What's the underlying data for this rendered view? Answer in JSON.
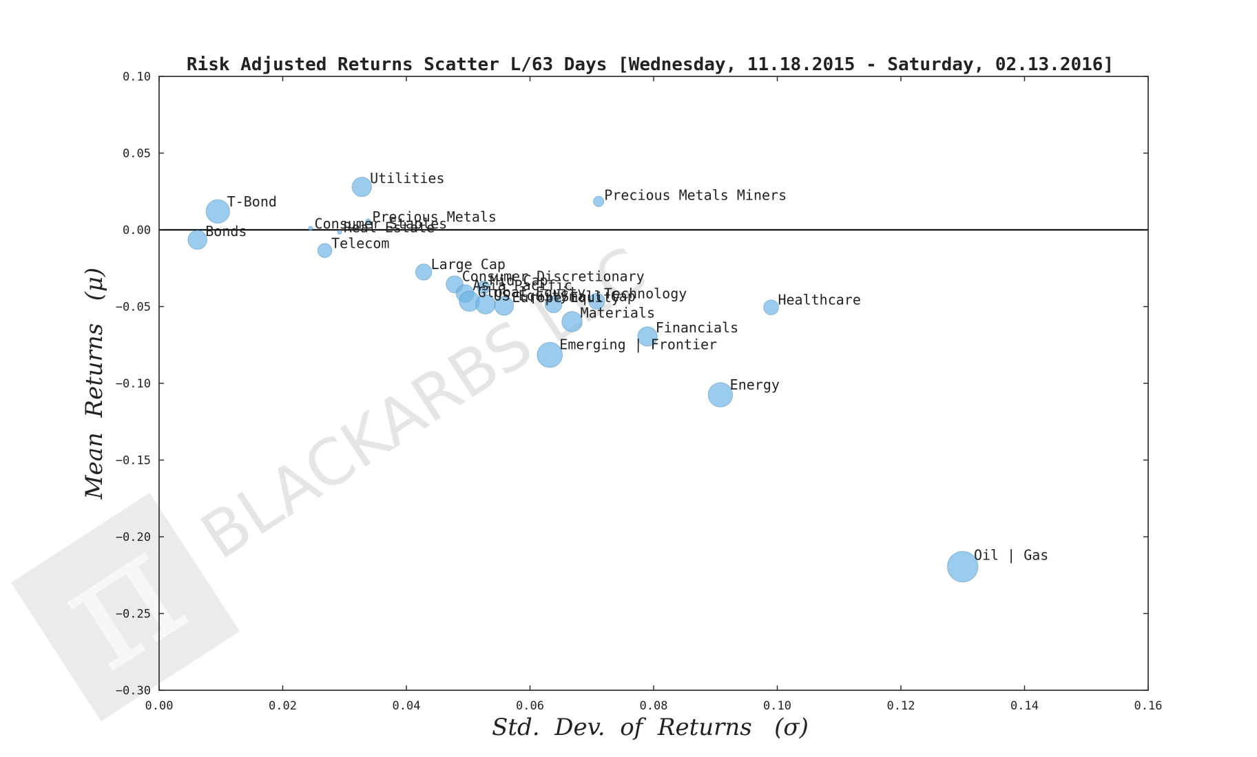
{
  "chart_data": {
    "type": "scatter",
    "title": "Risk Adjusted Returns Scatter L/63 Days [Wednesday, 11.18.2015 - Saturday, 02.13.2016]",
    "xlabel": "Std.  Dev.  of  Returns   (σ)",
    "ylabel": "Mean  Returns   (μ)",
    "xlim": [
      0.0,
      0.16
    ],
    "ylim": [
      -0.3,
      0.1
    ],
    "xticks": [
      "0.00",
      "0.02",
      "0.04",
      "0.06",
      "0.08",
      "0.10",
      "0.12",
      "0.14",
      "0.16"
    ],
    "yticks": [
      "0.10",
      "0.05",
      "0.00",
      "−0.05",
      "−0.10",
      "−0.15",
      "−0.20",
      "−0.25",
      "−0.30"
    ],
    "grid": false,
    "zero_line": true,
    "marker_color": "#6cb4e4",
    "points": [
      {
        "label": "Bonds",
        "x": 0.0062,
        "y": -0.0065,
        "size": 0.46
      },
      {
        "label": "T-Bond",
        "x": 0.0095,
        "y": 0.012,
        "size": 0.57
      },
      {
        "label": "Consumer Staples",
        "x": 0.0245,
        "y": 0.001,
        "size": 0.07
      },
      {
        "label": "Real Estate",
        "x": 0.0292,
        "y": -0.0015,
        "size": 0.07
      },
      {
        "label": "Precious Metals",
        "x": 0.0338,
        "y": 0.0055,
        "size": 0.12
      },
      {
        "label": "Telecom",
        "x": 0.0268,
        "y": -0.0135,
        "size": 0.34
      },
      {
        "label": "Utilities",
        "x": 0.0328,
        "y": 0.028,
        "size": 0.47
      },
      {
        "label": "Large Cap",
        "x": 0.0428,
        "y": -0.0275,
        "size": 0.39
      },
      {
        "label": "Consumer Discretionary",
        "x": 0.0478,
        "y": -0.0355,
        "size": 0.41
      },
      {
        "label": "Asia Pacific",
        "x": 0.0495,
        "y": -0.0415,
        "size": 0.43
      },
      {
        "label": "Global Equity",
        "x": 0.0502,
        "y": -0.0465,
        "size": 0.49
      },
      {
        "label": "Mid Cap",
        "x": 0.0525,
        "y": -0.0375,
        "size": 0.31
      },
      {
        "label": "US Equity",
        "x": 0.0528,
        "y": -0.0485,
        "size": 0.47
      },
      {
        "label": "Europe Equity",
        "x": 0.0558,
        "y": -0.0495,
        "size": 0.46
      },
      {
        "label": "Small Cap",
        "x": 0.0638,
        "y": -0.0485,
        "size": 0.41
      },
      {
        "label": "Technology",
        "x": 0.0708,
        "y": -0.0465,
        "size": 0.39
      },
      {
        "label": "Materials",
        "x": 0.0668,
        "y": -0.0598,
        "size": 0.49
      },
      {
        "label": "Emerging | Frontier",
        "x": 0.0632,
        "y": -0.0815,
        "size": 0.61
      },
      {
        "label": "Financials",
        "x": 0.079,
        "y": -0.0695,
        "size": 0.47
      },
      {
        "label": "Precious Metals Miners",
        "x": 0.0711,
        "y": 0.0185,
        "size": 0.25
      },
      {
        "label": "Healthcare",
        "x": 0.099,
        "y": -0.0505,
        "size": 0.36
      },
      {
        "label": "Energy",
        "x": 0.0908,
        "y": -0.1075,
        "size": 0.59
      },
      {
        "label": "Oil | Gas",
        "x": 0.13,
        "y": -0.2195,
        "size": 0.74
      }
    ]
  },
  "watermark": {
    "text": "BLACKARBS LLC",
    "logo_glyph": "π"
  }
}
